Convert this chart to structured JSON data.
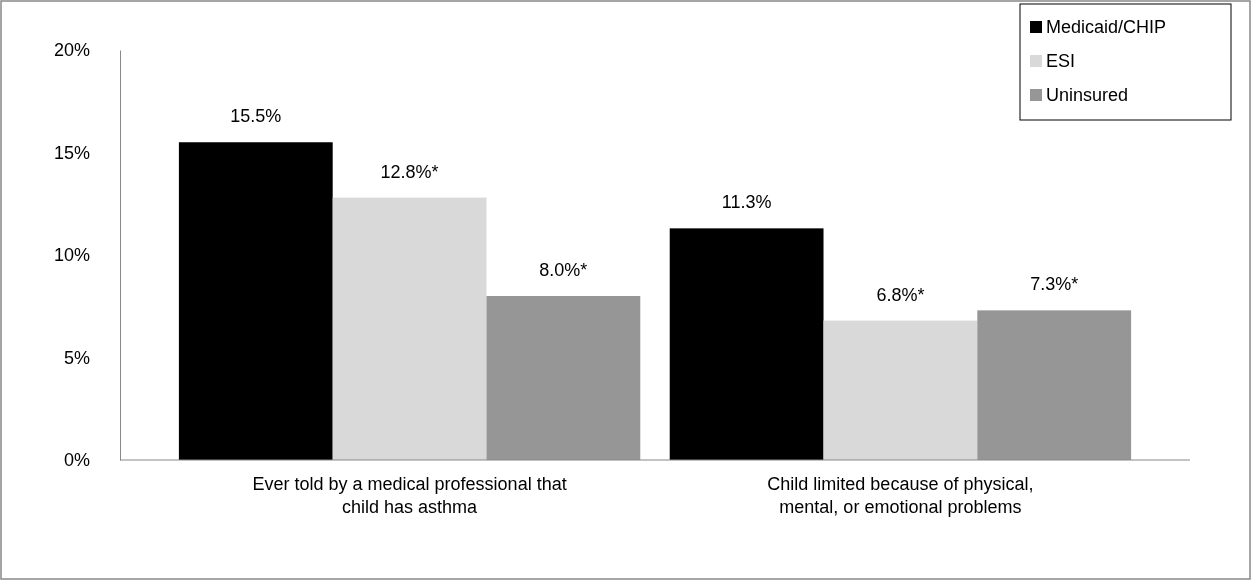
{
  "chart_data": {
    "type": "bar",
    "categories": [
      "Ever told by a medical professional that child has asthma",
      "Child limited because of physical, mental, or emotional problems"
    ],
    "series": [
      {
        "name": "Medicaid/CHIP",
        "color": "#000000",
        "values": [
          15.5,
          11.3
        ],
        "value_labels": [
          "15.5%",
          "11.3%"
        ]
      },
      {
        "name": "ESI",
        "color": "#d9d9d9",
        "values": [
          12.8,
          6.8
        ],
        "value_labels": [
          "12.8%*",
          "6.8%*"
        ]
      },
      {
        "name": "Uninsured",
        "color": "#969696",
        "values": [
          8.0,
          7.3
        ],
        "value_labels": [
          "8.0%*",
          "7.3%*"
        ]
      }
    ],
    "ylim": [
      0,
      20
    ],
    "yticks": [
      {
        "value": 0,
        "label": "0%"
      },
      {
        "value": 5,
        "label": "5%"
      },
      {
        "value": 10,
        "label": "10%"
      },
      {
        "value": 15,
        "label": "15%"
      },
      {
        "value": 20,
        "label": "20%"
      }
    ],
    "legend": "top right"
  }
}
